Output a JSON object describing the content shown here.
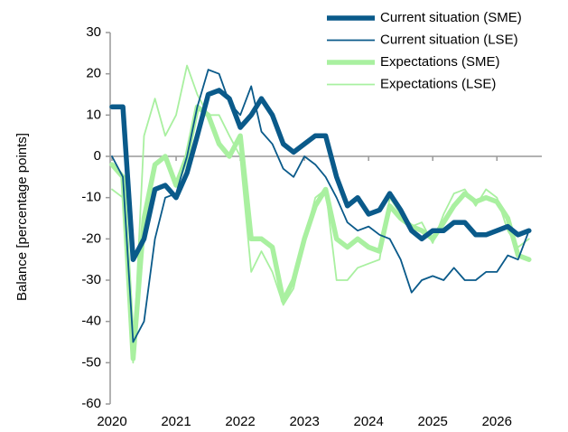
{
  "chart_data": {
    "type": "line",
    "y_label": "Balance [percentage points]",
    "x": [
      2020.0,
      2020.17,
      2020.33,
      2020.5,
      2020.67,
      2020.83,
      2021.0,
      2021.17,
      2021.33,
      2021.5,
      2021.67,
      2021.83,
      2022.0,
      2022.17,
      2022.33,
      2022.5,
      2022.67,
      2022.83,
      2023.0,
      2023.17,
      2023.33,
      2023.5,
      2023.67,
      2023.83,
      2024.0,
      2024.17,
      2024.33,
      2024.5,
      2024.67,
      2024.83,
      2025.0,
      2025.17,
      2025.33,
      2025.5,
      2025.67,
      2025.83,
      2026.0,
      2026.17,
      2026.33,
      2026.5
    ],
    "series": [
      {
        "name": "Current situation (SME)",
        "color": "#0a5a8a",
        "values": [
          12,
          12,
          -25,
          -20,
          -8,
          -7,
          -10,
          -4,
          5,
          15,
          16,
          14,
          7,
          10,
          14,
          10,
          3,
          1,
          3,
          5,
          5,
          -5,
          -12,
          -10,
          -14,
          -13,
          -9,
          -13,
          -18,
          -20,
          -18,
          -18,
          -16,
          -16,
          -19,
          -19,
          -18,
          -17,
          -19,
          -18
        ]
      },
      {
        "name": "Current situation (LSE)",
        "color": "#0a5a8a",
        "values": [
          0,
          -5,
          -45,
          -40,
          -20,
          -10,
          -9,
          0,
          12,
          21,
          20,
          13,
          10,
          17,
          6,
          3,
          -3,
          -5,
          0,
          -2,
          -5,
          -10,
          -16,
          -18,
          -17,
          -19,
          -20,
          -25,
          -33,
          -30,
          -29,
          -30,
          -27,
          -30,
          -30,
          -28,
          -28,
          -24,
          -25,
          -18
        ]
      },
      {
        "name": "Expectations (SME)",
        "color": "#a9f0a0",
        "values": [
          -2,
          -5,
          -49,
          -15,
          -2,
          0,
          -7,
          0,
          12,
          10,
          3,
          0,
          5,
          -20,
          -20,
          -22,
          -35,
          -30,
          -20,
          -12,
          -8,
          -20,
          -22,
          -20,
          -22,
          -23,
          -12,
          -15,
          -17,
          -18,
          -20,
          -16,
          -12,
          -9,
          -11,
          -10,
          -11,
          -15,
          -24,
          -25
        ]
      },
      {
        "name": "Expectations (LSE)",
        "color": "#a9f0a0",
        "values": [
          -8,
          -10,
          -50,
          5,
          14,
          5,
          10,
          22,
          15,
          10,
          10,
          5,
          0,
          -28,
          -23,
          -28,
          -36,
          -32,
          -20,
          -10,
          -8,
          -30,
          -30,
          -27,
          -26,
          -25,
          -10,
          -14,
          -17,
          -16,
          -21,
          -14,
          -9,
          -8,
          -12,
          -8,
          -10,
          -18,
          -22,
          -20
        ]
      }
    ],
    "xlim": [
      2020,
      2026.7
    ],
    "xticks": [
      2020,
      2021,
      2022,
      2023,
      2024,
      2025,
      2026
    ],
    "ylim": [
      -60,
      30
    ],
    "yticks": [
      -60,
      -50,
      -40,
      -30,
      -20,
      -10,
      0,
      10,
      20,
      30
    ],
    "legend": "upper right"
  }
}
